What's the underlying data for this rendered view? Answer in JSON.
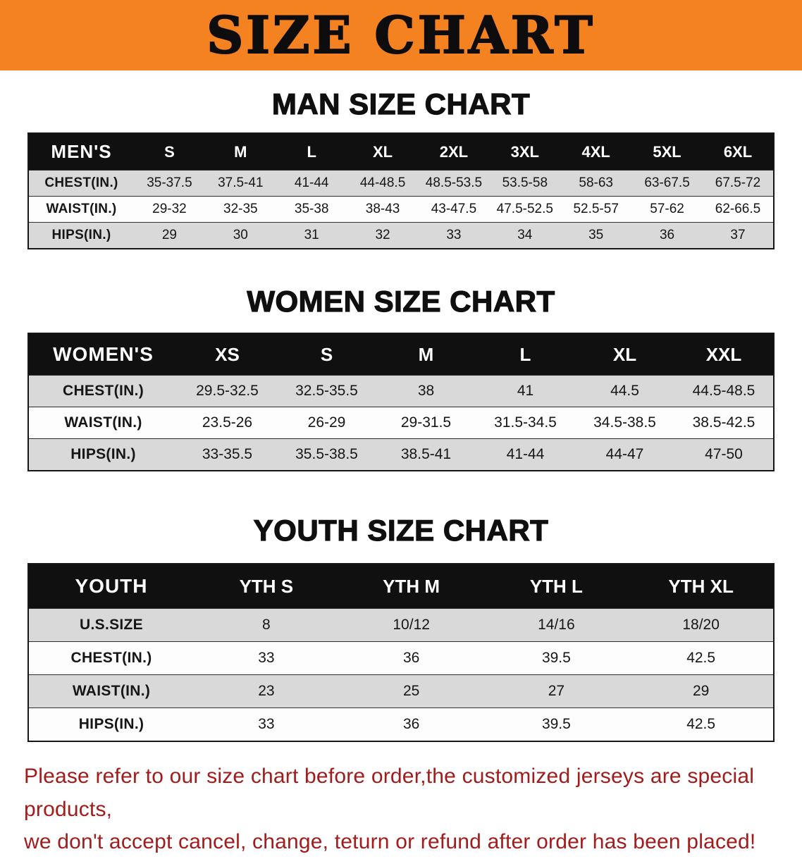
{
  "banner": {
    "title": "SIZE CHART"
  },
  "colors": {
    "banner-bg": "#F58220",
    "header-bg": "#101010",
    "stripe": "#d9d9d9",
    "notice": "#A21C1C"
  },
  "chart_data": [
    {
      "type": "table",
      "title": "MAN SIZE CHART",
      "header": [
        "MEN'S",
        "S",
        "M",
        "L",
        "XL",
        "2XL",
        "3XL",
        "4XL",
        "5XL",
        "6XL"
      ],
      "rows": [
        [
          "CHEST(IN.)",
          "35-37.5",
          "37.5-41",
          "41-44",
          "44-48.5",
          "48.5-53.5",
          "53.5-58",
          "58-63",
          "63-67.5",
          "67.5-72"
        ],
        [
          "WAIST(IN.)",
          "29-32",
          "32-35",
          "35-38",
          "38-43",
          "43-47.5",
          "47.5-52.5",
          "52.5-57",
          "57-62",
          "62-66.5"
        ],
        [
          "HIPS(IN.)",
          "29",
          "30",
          "31",
          "32",
          "33",
          "34",
          "35",
          "36",
          "37"
        ]
      ]
    },
    {
      "type": "table",
      "title": "WOMEN SIZE CHART",
      "header": [
        "WOMEN'S",
        "XS",
        "S",
        "M",
        "L",
        "XL",
        "XXL"
      ],
      "rows": [
        [
          "CHEST(IN.)",
          "29.5-32.5",
          "32.5-35.5",
          "38",
          "41",
          "44.5",
          "44.5-48.5"
        ],
        [
          "WAIST(IN.)",
          "23.5-26",
          "26-29",
          "29-31.5",
          "31.5-34.5",
          "34.5-38.5",
          "38.5-42.5"
        ],
        [
          "HIPS(IN.)",
          "33-35.5",
          "35.5-38.5",
          "38.5-41",
          "41-44",
          "44-47",
          "47-50"
        ]
      ]
    },
    {
      "type": "table",
      "title": "YOUTH SIZE CHART",
      "header": [
        "YOUTH",
        "YTH S",
        "YTH M",
        "YTH L",
        "YTH XL"
      ],
      "rows": [
        [
          "U.S.SIZE",
          "8",
          "10/12",
          "14/16",
          "18/20"
        ],
        [
          "CHEST(IN.)",
          "33",
          "36",
          "39.5",
          "42.5"
        ],
        [
          "WAIST(IN.)",
          "23",
          "25",
          "27",
          "29"
        ],
        [
          "HIPS(IN.)",
          "33",
          "36",
          "39.5",
          "42.5"
        ]
      ]
    }
  ],
  "notice": {
    "line1": "Please refer to our size chart before order,the customized jerseys are special products,",
    "line2": "we don't accept cancel, change, teturn or refund after order has been placed!"
  }
}
